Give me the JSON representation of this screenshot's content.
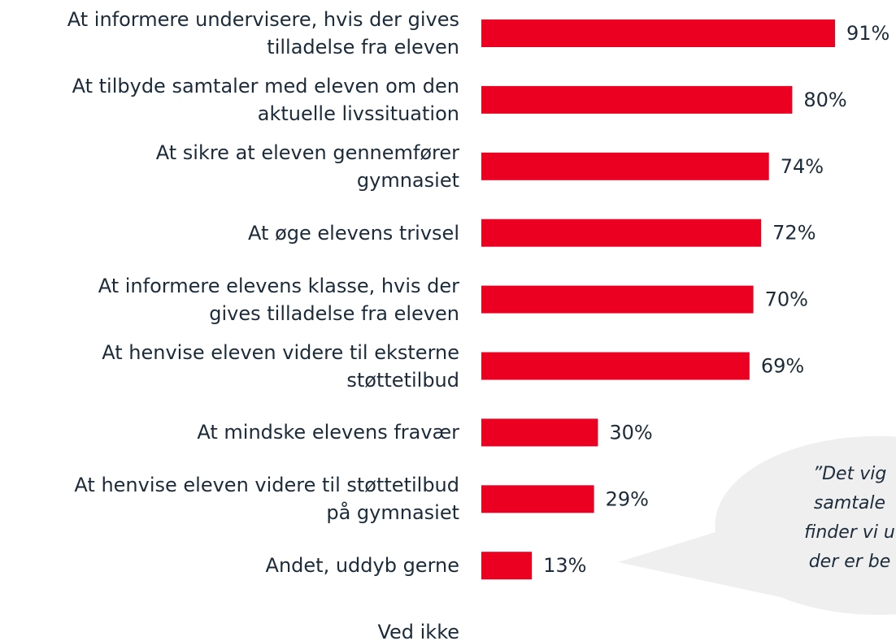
{
  "chart_data": {
    "type": "barh",
    "categories": [
      "At informere undervisere, hvis der gives\ntilladelse fra eleven",
      "At tilbyde samtaler med eleven om den\naktuelle livssituation",
      "At sikre at eleven gennemfører\ngymnasiet",
      "At øge elevens trivsel",
      "At informere elevens klasse, hvis der\ngives tilladelse fra eleven",
      "At henvise eleven videre til eksterne\nstøttetilbud",
      "At mindske elevens fravær",
      "At henvise eleven videre til støttetilbud\npå gymnasiet",
      "Andet, uddyb gerne",
      "Ved ikke"
    ],
    "values": [
      91,
      80,
      74,
      72,
      70,
      69,
      30,
      29,
      13,
      null
    ],
    "value_labels": [
      "91%",
      "80%",
      "74%",
      "72%",
      "70%",
      "69%",
      "30%",
      "29%",
      "13%",
      null
    ],
    "color": "#eb0022",
    "xlim": [
      0,
      100
    ],
    "annotation": [
      "”Det vig",
      "samtale",
      "finder vi u",
      "der er be"
    ]
  }
}
